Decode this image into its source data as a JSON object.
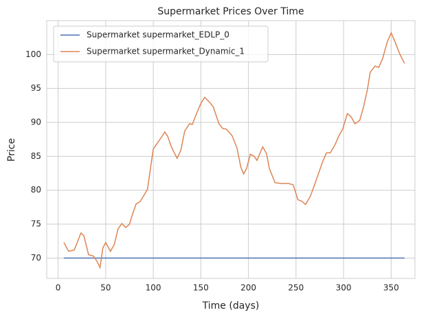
{
  "chart_data": {
    "type": "line",
    "title": "Supermarket Prices Over Time",
    "x_label": "Time (days)",
    "y_label": "Price",
    "x": [
      6,
      11,
      17,
      22,
      24,
      27,
      32,
      37,
      41,
      44,
      47,
      50,
      55,
      59,
      63,
      67,
      71,
      75,
      78,
      82,
      86,
      90,
      94,
      96,
      100,
      105,
      109,
      112,
      115,
      119,
      125,
      129,
      133,
      138,
      141,
      146,
      150,
      154,
      159,
      163,
      169,
      173,
      177,
      183,
      188,
      192,
      195,
      198,
      202,
      206,
      209,
      215,
      219,
      222,
      228,
      235,
      242,
      247,
      252,
      256,
      260,
      265,
      269,
      273,
      278,
      282,
      286,
      291,
      295,
      299,
      304,
      308,
      312,
      317,
      321,
      325,
      328,
      333,
      337,
      341,
      346,
      350,
      354,
      359,
      364
    ],
    "series": [
      {
        "name": "Supermarket supermarket_EDLP_0",
        "color": "#4c72b0",
        "values": [
          70,
          70,
          70,
          70,
          70,
          70,
          70,
          70,
          70,
          70,
          70,
          70,
          70,
          70,
          70,
          70,
          70,
          70,
          70,
          70,
          70,
          70,
          70,
          70,
          70,
          70,
          70,
          70,
          70,
          70,
          70,
          70,
          70,
          70,
          70,
          70,
          70,
          70,
          70,
          70,
          70,
          70,
          70,
          70,
          70,
          70,
          70,
          70,
          70,
          70,
          70,
          70,
          70,
          70,
          70,
          70,
          70,
          70,
          70,
          70,
          70,
          70,
          70,
          70,
          70,
          70,
          70,
          70,
          70,
          70,
          70,
          70,
          70,
          70,
          70,
          70,
          70,
          70,
          70,
          70,
          70,
          70,
          70,
          70,
          70
        ]
      },
      {
        "name": "Supermarket supermarket_Dynamic_1",
        "color": "#dd8452",
        "values": [
          72.3,
          71.0,
          71.2,
          73.0,
          73.7,
          73.3,
          70.5,
          70.3,
          69.5,
          68.6,
          71.5,
          72.3,
          71.0,
          72.0,
          74.3,
          75.1,
          74.5,
          75.0,
          76.4,
          78.0,
          78.3,
          79.2,
          80.2,
          82.2,
          86.1,
          87.1,
          87.9,
          88.6,
          88.0,
          86.4,
          84.7,
          85.9,
          88.7,
          89.8,
          89.7,
          91.5,
          92.8,
          93.7,
          93.0,
          92.3,
          89.8,
          89.1,
          89.0,
          88.0,
          86.2,
          83.4,
          82.4,
          83.2,
          85.3,
          85.0,
          84.4,
          86.4,
          85.4,
          83.2,
          81.1,
          81.0,
          81.0,
          80.8,
          78.6,
          78.4,
          77.9,
          79.1,
          80.6,
          82.2,
          84.2,
          85.5,
          85.5,
          86.7,
          88.0,
          89.0,
          91.3,
          90.8,
          89.8,
          90.3,
          92.3,
          94.8,
          97.4,
          98.3,
          98.1,
          99.4,
          101.9,
          103.2,
          101.9,
          100.1,
          98.7
        ]
      }
    ],
    "xlim": [
      -12,
      375
    ],
    "ylim": [
      67,
      105
    ],
    "xticks": [
      0,
      50,
      100,
      150,
      200,
      250,
      300,
      350
    ],
    "yticks": [
      70,
      75,
      80,
      85,
      90,
      95,
      100
    ],
    "grid": true,
    "legend": "upper left"
  }
}
